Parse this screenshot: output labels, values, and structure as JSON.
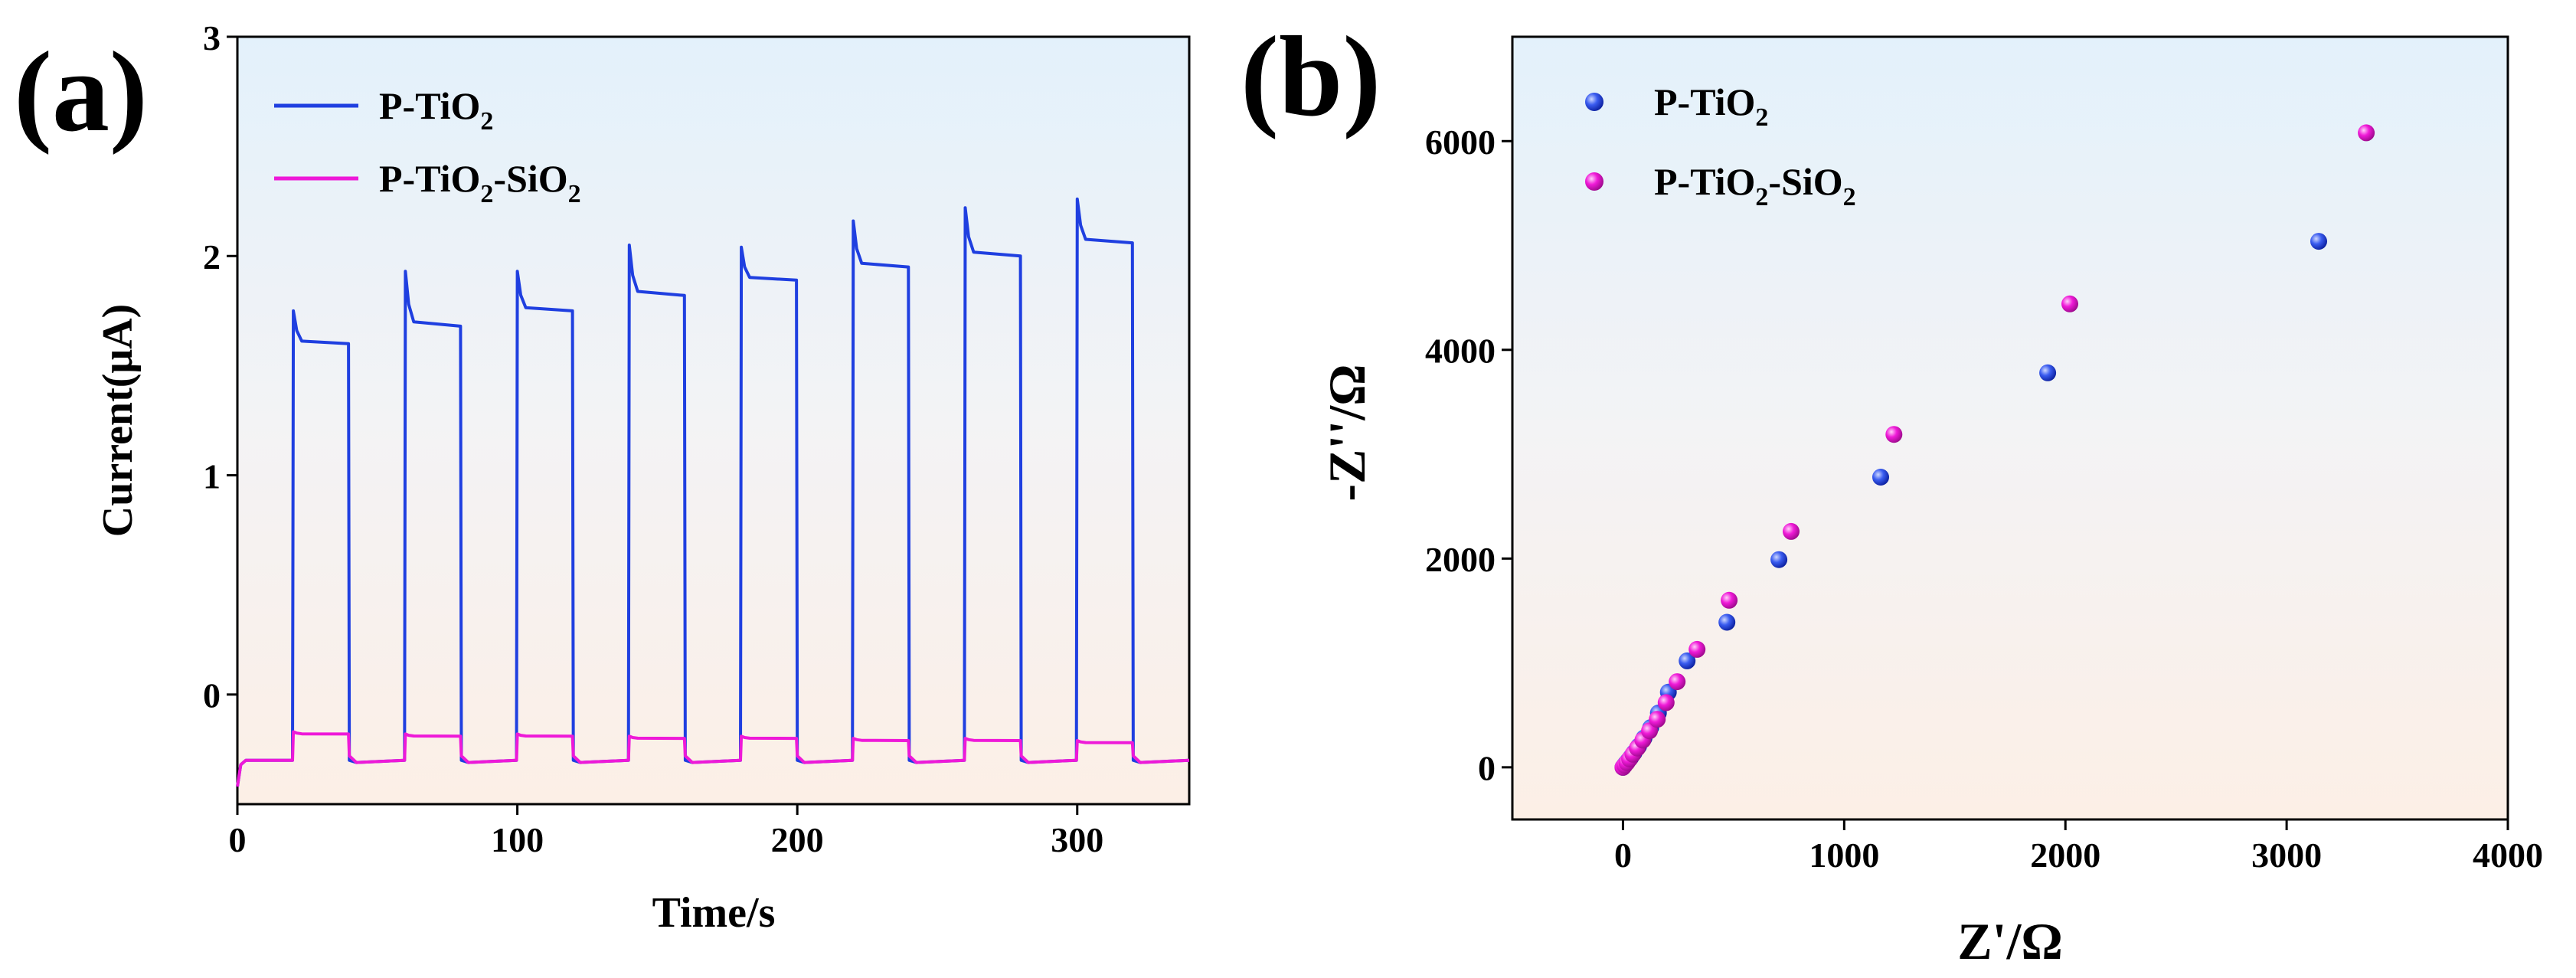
{
  "chart_data": [
    {
      "panel_label": "(a)",
      "type": "line",
      "xlabel": "Time/s",
      "ylabel": "Current(μA)",
      "xlim": [
        0,
        340
      ],
      "ylim": [
        -0.5,
        3
      ],
      "xticks": [
        "0",
        "100",
        "200",
        "300"
      ],
      "xtick_values": [
        0,
        100,
        200,
        300
      ],
      "yticks": [
        "0",
        "1",
        "2",
        "3"
      ],
      "ytick_values": [
        0,
        1,
        2,
        3
      ],
      "legend_position": "top-left",
      "light_on_times": [
        20,
        60,
        100,
        140,
        180,
        220,
        260,
        300
      ],
      "light_off_times": [
        40,
        80,
        120,
        160,
        200,
        240,
        280,
        320
      ],
      "series": [
        {
          "name_main": "P-TiO",
          "name_sub": "2",
          "name_rest": "",
          "name_sub2": "",
          "color": "#1f3fe0",
          "baseline": -0.3,
          "spike_values": [
            1.75,
            1.93,
            1.93,
            2.05,
            2.04,
            2.16,
            2.22,
            2.26
          ],
          "plateau_values": [
            1.6,
            1.68,
            1.75,
            1.82,
            1.89,
            1.95,
            2.0,
            2.06
          ]
        },
        {
          "name_main": "P-TiO",
          "name_sub": "2",
          "name_rest": "-SiO",
          "name_sub2": "2",
          "color": "#ee19d8",
          "baseline": -0.3,
          "spike_values": [
            -0.17,
            -0.18,
            -0.18,
            -0.19,
            -0.19,
            -0.2,
            -0.2,
            -0.21
          ],
          "plateau_values": [
            -0.18,
            -0.19,
            -0.19,
            -0.2,
            -0.2,
            -0.21,
            -0.21,
            -0.22
          ]
        }
      ]
    },
    {
      "panel_label": "(b)",
      "type": "scatter",
      "xlabel": "Z'/Ω",
      "ylabel": "-Z''/Ω",
      "xlim": [
        -500,
        4000
      ],
      "ylim": [
        -500,
        7000
      ],
      "xticks": [
        "0",
        "1000",
        "2000",
        "3000",
        "4000"
      ],
      "xtick_values": [
        0,
        1000,
        2000,
        3000,
        4000
      ],
      "yticks": [
        "0",
        "2000",
        "4000",
        "6000"
      ],
      "ytick_values": [
        0,
        2000,
        4000,
        6000
      ],
      "legend_position": "top-left",
      "series": [
        {
          "name_main": "P-TiO",
          "name_sub": "2",
          "name_rest": "",
          "name_sub2": "",
          "color": "#2e4fe6",
          "points": [
            [
              0,
              0
            ],
            [
              5,
              15
            ],
            [
              12,
              35
            ],
            [
              22,
              60
            ],
            [
              35,
              95
            ],
            [
              50,
              140
            ],
            [
              70,
              200
            ],
            [
              95,
              280
            ],
            [
              125,
              380
            ],
            [
              160,
              520
            ],
            [
              205,
              720
            ],
            [
              290,
              1020
            ],
            [
              470,
              1390
            ],
            [
              705,
              1990
            ],
            [
              1165,
              2780
            ],
            [
              1920,
              3780
            ],
            [
              3145,
              5040
            ]
          ]
        },
        {
          "name_main": "P-TiO",
          "name_sub": "2",
          "name_rest": "-SiO",
          "name_sub2": "2",
          "color": "#f01ad8",
          "points": [
            [
              0,
              0
            ],
            [
              8,
              20
            ],
            [
              18,
              45
            ],
            [
              30,
              80
            ],
            [
              45,
              125
            ],
            [
              65,
              185
            ],
            [
              90,
              260
            ],
            [
              120,
              350
            ],
            [
              155,
              460
            ],
            [
              195,
              620
            ],
            [
              245,
              820
            ],
            [
              335,
              1130
            ],
            [
              480,
              1600
            ],
            [
              760,
              2260
            ],
            [
              1225,
              3190
            ],
            [
              2020,
              4440
            ],
            [
              3360,
              6080
            ]
          ]
        }
      ]
    }
  ]
}
